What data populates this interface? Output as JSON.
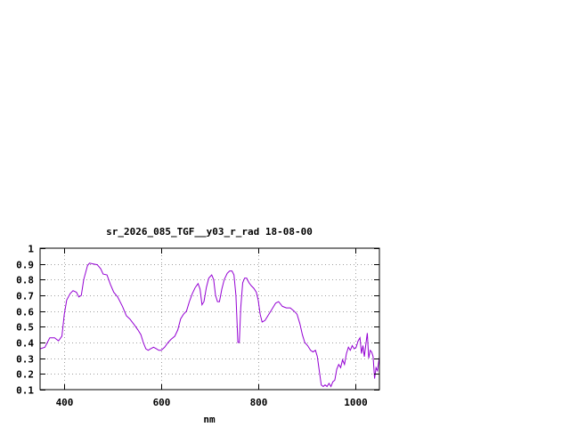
{
  "chart_data": {
    "type": "line",
    "title": "sr_2026_085_TGF__y03_r_rad 18-08-00",
    "xlabel": "nm",
    "ylabel": "",
    "xlim": [
      350,
      1050
    ],
    "ylim": [
      0.1,
      1.0
    ],
    "grid": true,
    "x_ticks": [
      400,
      600,
      800,
      1000
    ],
    "x_tick_labels": [
      "400",
      "600",
      "800",
      "1000"
    ],
    "y_ticks": [
      0.1,
      0.2,
      0.3,
      0.4,
      0.5,
      0.6,
      0.7,
      0.8,
      0.9,
      1.0
    ],
    "y_tick_labels": [
      "0.1",
      "0.2",
      "0.3",
      "0.4",
      "0.5",
      "0.6",
      "0.7",
      "0.8",
      "0.9",
      "1"
    ],
    "line_color": "#9400d3",
    "series": [
      {
        "points": [
          [
            350,
            0.36
          ],
          [
            360,
            0.37
          ],
          [
            370,
            0.43
          ],
          [
            380,
            0.43
          ],
          [
            388,
            0.41
          ],
          [
            395,
            0.44
          ],
          [
            400,
            0.58
          ],
          [
            405,
            0.67
          ],
          [
            412,
            0.71
          ],
          [
            418,
            0.73
          ],
          [
            425,
            0.72
          ],
          [
            430,
            0.69
          ],
          [
            435,
            0.7
          ],
          [
            440,
            0.8
          ],
          [
            448,
            0.89
          ],
          [
            452,
            0.905
          ],
          [
            460,
            0.9
          ],
          [
            468,
            0.895
          ],
          [
            475,
            0.87
          ],
          [
            480,
            0.835
          ],
          [
            488,
            0.83
          ],
          [
            495,
            0.77
          ],
          [
            502,
            0.72
          ],
          [
            510,
            0.69
          ],
          [
            520,
            0.63
          ],
          [
            528,
            0.57
          ],
          [
            535,
            0.55
          ],
          [
            545,
            0.51
          ],
          [
            552,
            0.48
          ],
          [
            558,
            0.45
          ],
          [
            563,
            0.4
          ],
          [
            568,
            0.36
          ],
          [
            573,
            0.35
          ],
          [
            578,
            0.36
          ],
          [
            584,
            0.37
          ],
          [
            590,
            0.36
          ],
          [
            595,
            0.35
          ],
          [
            600,
            0.35
          ],
          [
            607,
            0.37
          ],
          [
            614,
            0.4
          ],
          [
            620,
            0.42
          ],
          [
            628,
            0.44
          ],
          [
            634,
            0.48
          ],
          [
            640,
            0.55
          ],
          [
            646,
            0.58
          ],
          [
            652,
            0.6
          ],
          [
            658,
            0.66
          ],
          [
            664,
            0.71
          ],
          [
            670,
            0.75
          ],
          [
            676,
            0.775
          ],
          [
            680,
            0.74
          ],
          [
            684,
            0.64
          ],
          [
            688,
            0.66
          ],
          [
            693,
            0.75
          ],
          [
            698,
            0.81
          ],
          [
            704,
            0.83
          ],
          [
            708,
            0.8
          ],
          [
            712,
            0.7
          ],
          [
            716,
            0.66
          ],
          [
            720,
            0.66
          ],
          [
            725,
            0.74
          ],
          [
            730,
            0.8
          ],
          [
            736,
            0.84
          ],
          [
            741,
            0.855
          ],
          [
            746,
            0.855
          ],
          [
            750,
            0.83
          ],
          [
            754,
            0.7
          ],
          [
            758,
            0.4
          ],
          [
            761,
            0.4
          ],
          [
            764,
            0.62
          ],
          [
            768,
            0.78
          ],
          [
            772,
            0.81
          ],
          [
            776,
            0.81
          ],
          [
            781,
            0.78
          ],
          [
            786,
            0.76
          ],
          [
            791,
            0.745
          ],
          [
            796,
            0.72
          ],
          [
            800,
            0.67
          ],
          [
            804,
            0.58
          ],
          [
            808,
            0.53
          ],
          [
            814,
            0.54
          ],
          [
            820,
            0.57
          ],
          [
            828,
            0.61
          ],
          [
            836,
            0.65
          ],
          [
            842,
            0.66
          ],
          [
            850,
            0.63
          ],
          [
            858,
            0.62
          ],
          [
            866,
            0.62
          ],
          [
            874,
            0.6
          ],
          [
            880,
            0.58
          ],
          [
            886,
            0.52
          ],
          [
            891,
            0.45
          ],
          [
            896,
            0.4
          ],
          [
            902,
            0.38
          ],
          [
            908,
            0.35
          ],
          [
            913,
            0.34
          ],
          [
            918,
            0.35
          ],
          [
            922,
            0.31
          ],
          [
            926,
            0.22
          ],
          [
            930,
            0.13
          ],
          [
            934,
            0.12
          ],
          [
            938,
            0.13
          ],
          [
            942,
            0.12
          ],
          [
            946,
            0.14
          ],
          [
            950,
            0.12
          ],
          [
            954,
            0.15
          ],
          [
            958,
            0.16
          ],
          [
            962,
            0.23
          ],
          [
            966,
            0.26
          ],
          [
            970,
            0.24
          ],
          [
            974,
            0.29
          ],
          [
            978,
            0.26
          ],
          [
            982,
            0.33
          ],
          [
            986,
            0.37
          ],
          [
            990,
            0.35
          ],
          [
            994,
            0.38
          ],
          [
            998,
            0.36
          ],
          [
            1002,
            0.37
          ],
          [
            1006,
            0.41
          ],
          [
            1010,
            0.43
          ],
          [
            1013,
            0.33
          ],
          [
            1016,
            0.38
          ],
          [
            1019,
            0.31
          ],
          [
            1022,
            0.39
          ],
          [
            1025,
            0.46
          ],
          [
            1028,
            0.3
          ],
          [
            1031,
            0.35
          ],
          [
            1034,
            0.34
          ],
          [
            1037,
            0.31
          ],
          [
            1040,
            0.17
          ],
          [
            1043,
            0.24
          ],
          [
            1046,
            0.22
          ],
          [
            1050,
            0.31
          ]
        ]
      }
    ]
  }
}
